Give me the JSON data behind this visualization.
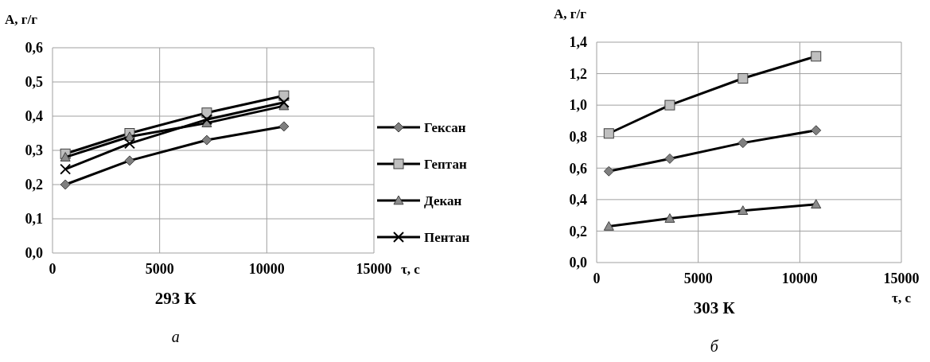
{
  "chart_data": [
    {
      "type": "line",
      "title": "293 К",
      "subtitle": "а",
      "xlabel": "τ, с",
      "ylabel": "А, г/г",
      "x": [
        600,
        3600,
        7200,
        10800
      ],
      "xlim": [
        0,
        15000
      ],
      "xticks": [
        0,
        5000,
        10000,
        15000
      ],
      "ylim": [
        0,
        0.6
      ],
      "yticks": [
        {
          "value": 0,
          "label": "0,0"
        },
        {
          "value": 0.1,
          "label": "0,1"
        },
        {
          "value": 0.2,
          "label": "0,2"
        },
        {
          "value": 0.3,
          "label": "0,3"
        },
        {
          "value": 0.4,
          "label": "0,4"
        },
        {
          "value": 0.5,
          "label": "0,5"
        },
        {
          "value": 0.6,
          "label": "0,6"
        }
      ],
      "grid": true,
      "legend": "right",
      "line_style": "solid",
      "series": [
        {
          "name": "Гексан",
          "color": "#7f7f7f",
          "marker": "diamond",
          "values": [
            0.2,
            0.27,
            0.33,
            0.37
          ]
        },
        {
          "name": "Гептан",
          "color": "#bfbfbf",
          "marker": "square",
          "values": [
            0.29,
            0.35,
            0.41,
            0.46
          ]
        },
        {
          "name": "Декан",
          "color": "#8c8c8c",
          "marker": "triangle",
          "values": [
            0.28,
            0.34,
            0.38,
            0.43
          ]
        },
        {
          "name": "Пентан",
          "color": "#000000",
          "marker": "cross",
          "values": [
            0.245,
            0.32,
            0.39,
            0.44
          ]
        }
      ]
    },
    {
      "type": "line",
      "title": "303 К",
      "subtitle": "б",
      "xlabel": "τ, с",
      "ylabel": "А, г/г",
      "x": [
        600,
        3600,
        7200,
        10800
      ],
      "xlim": [
        0,
        15000
      ],
      "xticks": [
        0,
        5000,
        10000,
        15000
      ],
      "ylim": [
        0,
        1.4
      ],
      "yticks": [
        {
          "value": 0,
          "label": "0,0"
        },
        {
          "value": 0.2,
          "label": "0,2"
        },
        {
          "value": 0.4,
          "label": "0,4"
        },
        {
          "value": 0.6,
          "label": "0,6"
        },
        {
          "value": 0.8,
          "label": "0,8"
        },
        {
          "value": 1.0,
          "label": "1,0"
        },
        {
          "value": 1.2,
          "label": "1,2"
        },
        {
          "value": 1.4,
          "label": "1,4"
        }
      ],
      "grid": true,
      "line_style": "solid",
      "series": [
        {
          "color": "#7f7f7f",
          "marker": "diamond",
          "values": [
            0.58,
            0.66,
            0.76,
            0.84
          ]
        },
        {
          "color": "#bfbfbf",
          "marker": "square",
          "values": [
            0.82,
            1.0,
            1.17,
            1.31
          ]
        },
        {
          "color": "#8c8c8c",
          "marker": "triangle",
          "values": [
            0.23,
            0.28,
            0.33,
            0.37
          ]
        }
      ]
    }
  ]
}
